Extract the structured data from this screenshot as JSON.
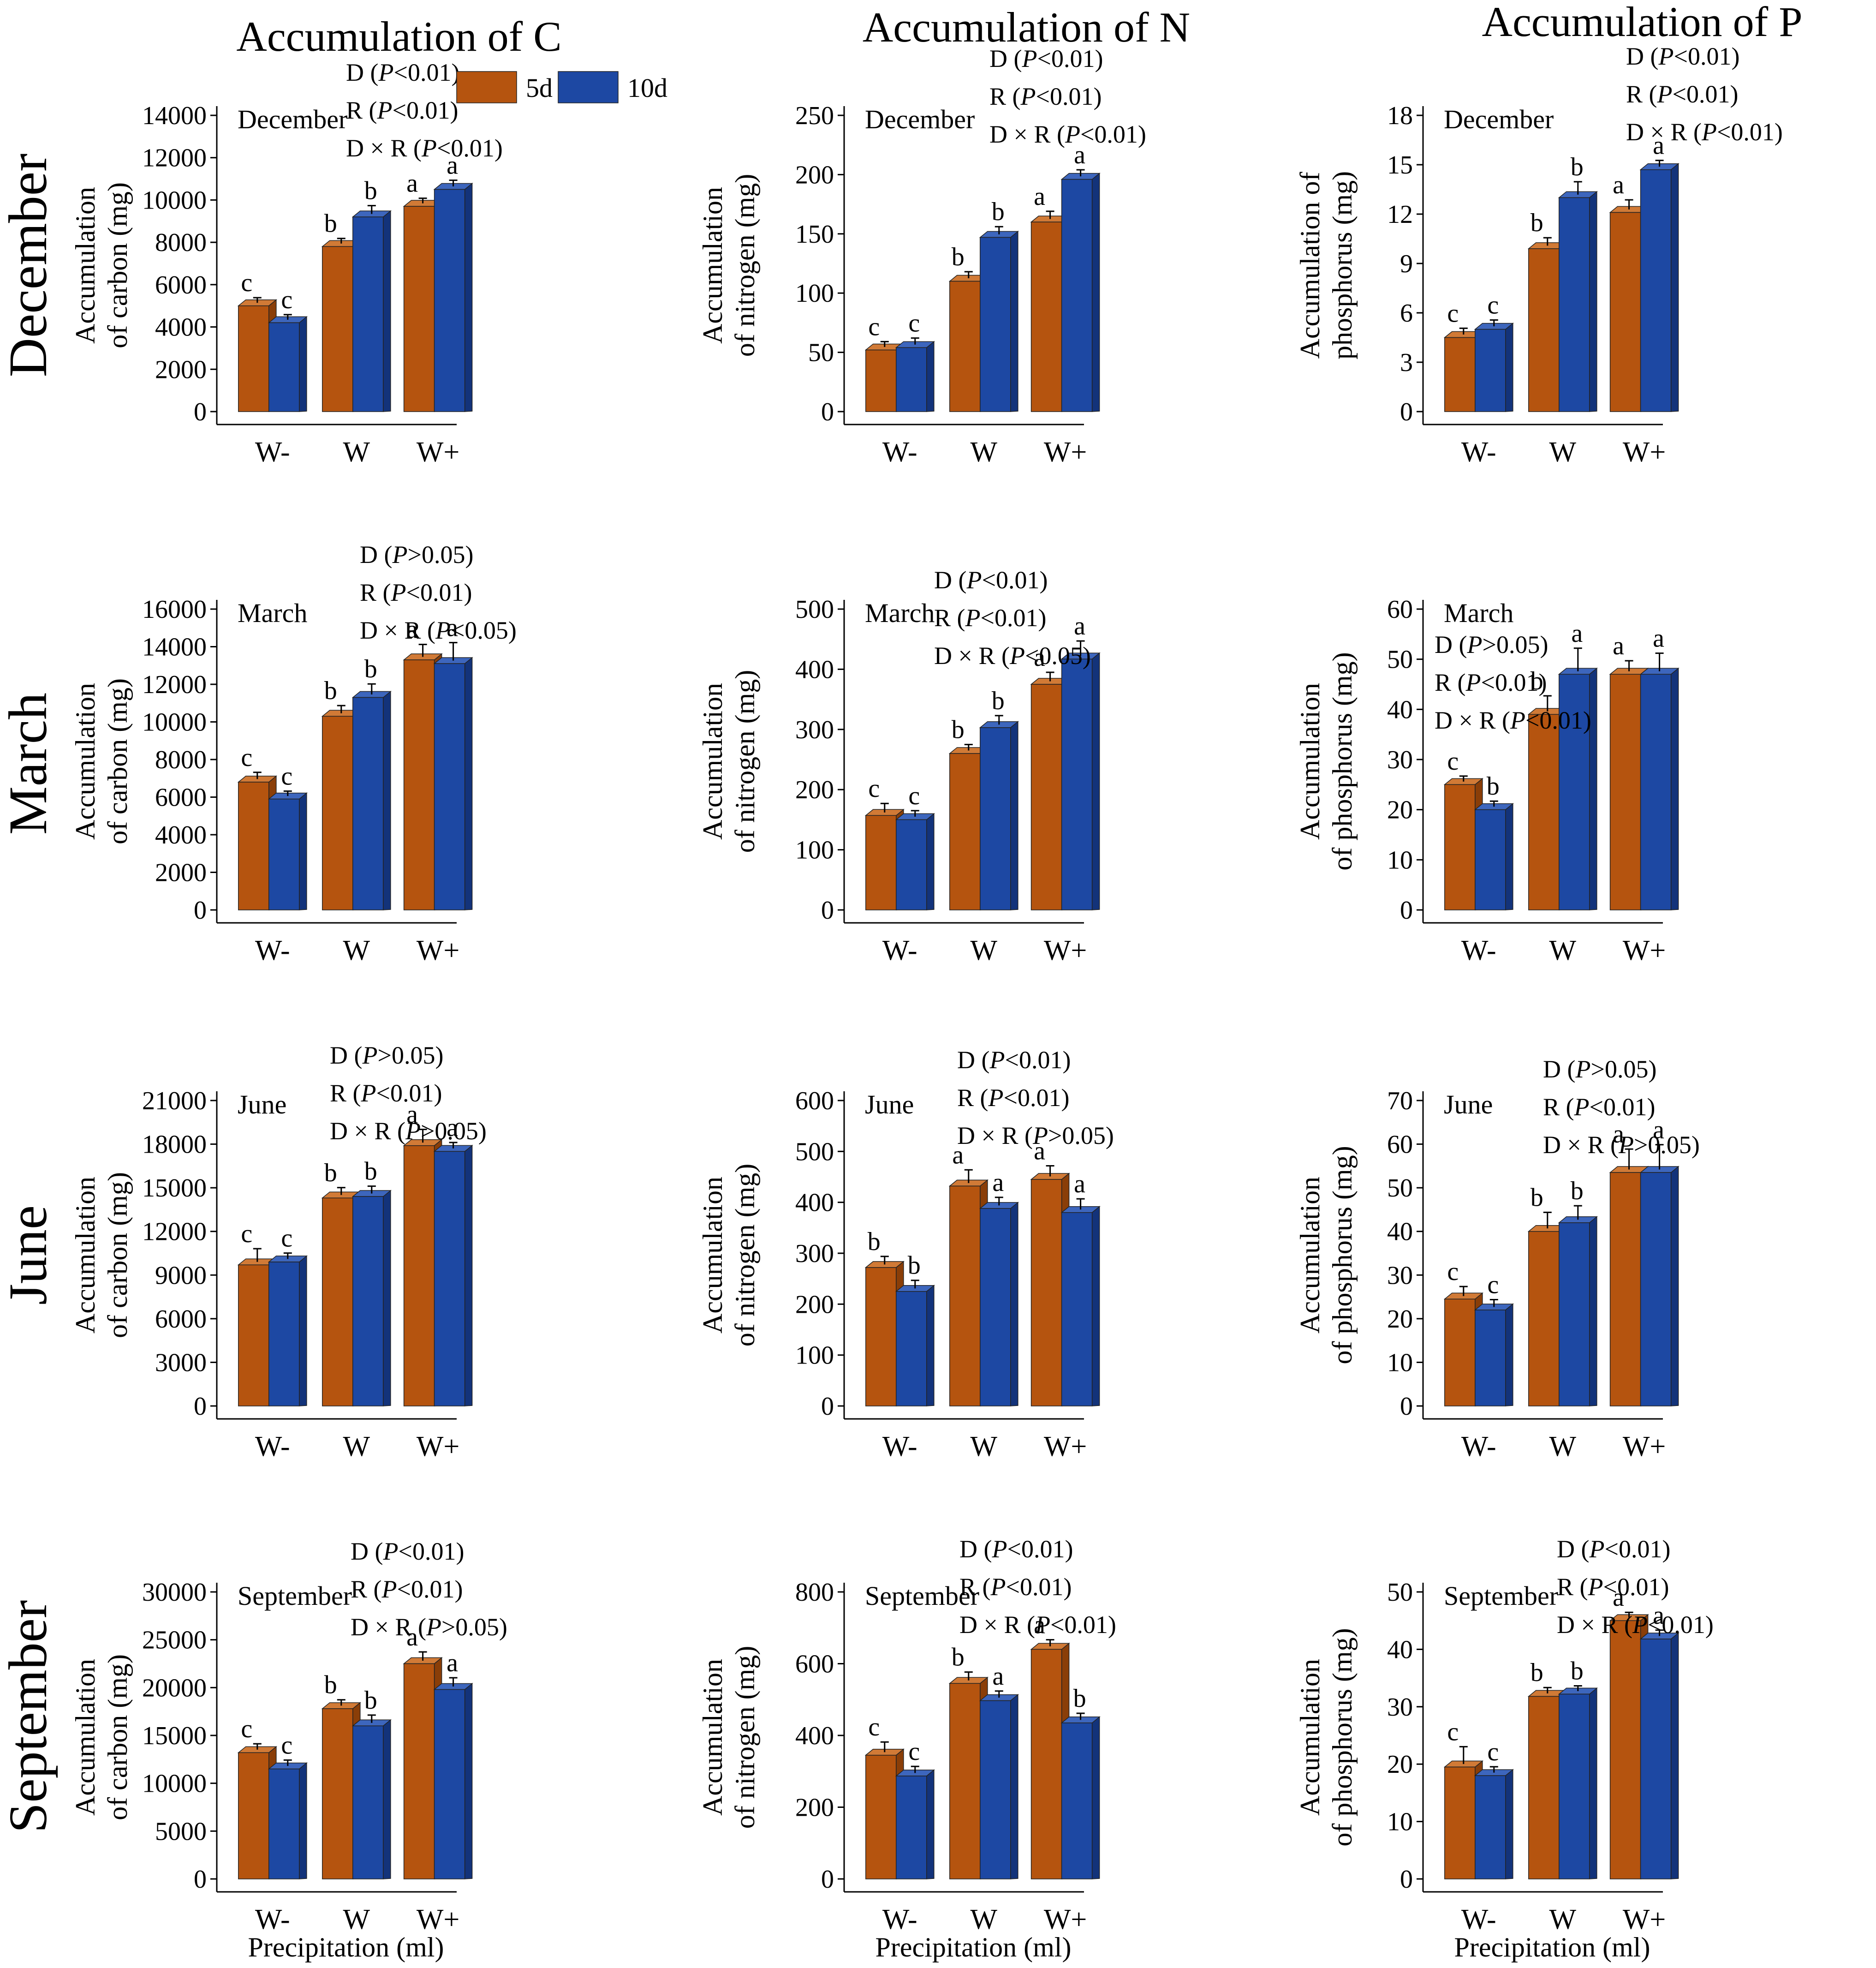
{
  "column_titles": [
    "Accumulation of C",
    "Accumulation of N",
    "Accumulation of P"
  ],
  "row_labels": [
    "December",
    "March",
    "June",
    "September"
  ],
  "colors": {
    "d5": "#B5540F",
    "d10": "#1D48A3",
    "d5_side": "#8A3E08",
    "d10_side": "#13337A",
    "d5_top": "#D17A36",
    "d10_top": "#3D66BD"
  },
  "legend": {
    "d5": "5d",
    "d10": "10d"
  },
  "x_axis_title": "Precipitation (ml)",
  "chart_data": [
    {
      "type": "bar",
      "row": 0,
      "col": 0,
      "title": "",
      "panel_label": "December",
      "ylabel_lines": [
        "Accumulation",
        "of carbon (mg)"
      ],
      "categories": [
        "W-",
        "W",
        "W+"
      ],
      "yticks": [
        "0",
        "2000",
        "4000",
        "6000",
        "8000",
        "10000",
        "12000",
        "14000"
      ],
      "ylim": [
        0,
        14000
      ],
      "series": [
        {
          "name": "5d",
          "values": [
            5000,
            7800,
            9700
          ]
        },
        {
          "name": "10d",
          "values": [
            4200,
            9200,
            10500
          ]
        }
      ],
      "errors": [
        [
          100,
          100,
          100
        ],
        [
          100,
          250,
          150
        ]
      ],
      "letters": [
        [
          "c",
          "b",
          "a"
        ],
        [
          "c",
          "b",
          "a"
        ]
      ],
      "stats": [
        "D (P<0.01)",
        "R (P<0.01)",
        "D × R (P<0.01)"
      ],
      "legend": true,
      "xlabel": ""
    },
    {
      "type": "bar",
      "row": 0,
      "col": 1,
      "title": "",
      "panel_label": "December",
      "ylabel_lines": [
        "Accumulation",
        "of nitrogen (mg)"
      ],
      "categories": [
        "W-",
        "W",
        "W+"
      ],
      "yticks": [
        "0",
        "50",
        "100",
        "150",
        "200",
        "250"
      ],
      "ylim": [
        0,
        250
      ],
      "series": [
        {
          "name": "5d",
          "values": [
            52,
            110,
            160
          ]
        },
        {
          "name": "10d",
          "values": [
            54,
            147,
            196
          ]
        }
      ],
      "errors": [
        [
          2,
          3,
          4
        ],
        [
          3,
          4,
          3
        ]
      ],
      "letters": [
        [
          "c",
          "b",
          "a"
        ],
        [
          "c",
          "b",
          "a"
        ]
      ],
      "stats": [
        "D (P<0.01)",
        "R (P<0.01)",
        "D × R (P<0.01)"
      ],
      "legend": false,
      "xlabel": ""
    },
    {
      "type": "bar",
      "row": 0,
      "col": 2,
      "title": "",
      "panel_label": "December",
      "ylabel_lines": [
        "Accumulation of",
        "phosphorus (mg)"
      ],
      "categories": [
        "W-",
        "W",
        "W+"
      ],
      "yticks": [
        "0",
        "3",
        "6",
        "9",
        "12",
        "15",
        "18"
      ],
      "ylim": [
        0,
        18
      ],
      "series": [
        {
          "name": "5d",
          "values": [
            4.5,
            9.9,
            12.1
          ]
        },
        {
          "name": "10d",
          "values": [
            5.0,
            13.0,
            14.7
          ]
        }
      ],
      "errors": [
        [
          0.2,
          0.3,
          0.4
        ],
        [
          0.2,
          0.6,
          0.2
        ]
      ],
      "letters": [
        [
          "c",
          "b",
          "a"
        ],
        [
          "c",
          "b",
          "a"
        ]
      ],
      "stats": [
        "D (P<0.01)",
        "R (P<0.01)",
        "D × R (P<0.01)"
      ],
      "legend": false,
      "xlabel": ""
    },
    {
      "type": "bar",
      "row": 1,
      "col": 0,
      "title": "",
      "panel_label": "March",
      "ylabel_lines": [
        "Accumulation",
        "of carbon (mg)"
      ],
      "categories": [
        "W-",
        "W",
        "W+"
      ],
      "yticks": [
        "0",
        "2000",
        "4000",
        "6000",
        "8000",
        "10000",
        "12000",
        "14000",
        "16000"
      ],
      "ylim": [
        0,
        16000
      ],
      "series": [
        {
          "name": "5d",
          "values": [
            6800,
            10300,
            13300
          ]
        },
        {
          "name": "10d",
          "values": [
            5900,
            11300,
            13100
          ]
        }
      ],
      "errors": [
        [
          200,
          250,
          500
        ],
        [
          100,
          400,
          800
        ]
      ],
      "letters": [
        [
          "c",
          "b",
          "a"
        ],
        [
          "c",
          "b",
          "a"
        ]
      ],
      "stats": [
        "D (P>0.05)",
        "R (P<0.01)",
        "D × R (P<0.05)"
      ],
      "legend": false,
      "xlabel": ""
    },
    {
      "type": "bar",
      "row": 1,
      "col": 1,
      "title": "",
      "panel_label": "March",
      "ylabel_lines": [
        "Accumulation",
        "of nitrogen (mg)"
      ],
      "categories": [
        "W-",
        "W",
        "W+"
      ],
      "yticks": [
        "0",
        "100",
        "200",
        "300",
        "400",
        "500"
      ],
      "ylim": [
        0,
        500
      ],
      "series": [
        {
          "name": "5d",
          "values": [
            157,
            260,
            375
          ]
        },
        {
          "name": "10d",
          "values": [
            150,
            303,
            417
          ]
        }
      ],
      "errors": [
        [
          10,
          5,
          10
        ],
        [
          5,
          10,
          20
        ]
      ],
      "letters": [
        [
          "c",
          "b",
          "a"
        ],
        [
          "c",
          "b",
          "a"
        ]
      ],
      "stats": [
        "D (P<0.01)",
        "R (P<0.01)",
        "D × R (P<0.05)"
      ],
      "legend": false,
      "xlabel": ""
    },
    {
      "type": "bar",
      "row": 1,
      "col": 2,
      "title": "",
      "panel_label": "March",
      "ylabel_lines": [
        "Accumulation",
        "of phosphorus (mg)"
      ],
      "categories": [
        "W-",
        "W",
        "W+"
      ],
      "yticks": [
        "0",
        "10",
        "20",
        "30",
        "40",
        "50",
        "60"
      ],
      "ylim": [
        0,
        60
      ],
      "series": [
        {
          "name": "5d",
          "values": [
            25,
            39,
            47
          ]
        },
        {
          "name": "10d",
          "values": [
            20,
            47,
            47
          ]
        }
      ],
      "errors": [
        [
          0.5,
          2.5,
          1.5
        ],
        [
          0.5,
          4,
          3
        ]
      ],
      "letters": [
        [
          "c",
          "b",
          "a"
        ],
        [
          "b",
          "a",
          "a"
        ]
      ],
      "stats": [
        "D (P>0.05)",
        "R (P<0.01)",
        "D × R (P<0.01)"
      ],
      "legend": false,
      "xlabel": ""
    },
    {
      "type": "bar",
      "row": 2,
      "col": 0,
      "title": "",
      "panel_label": "June",
      "ylabel_lines": [
        "Accumulation",
        "of carbon (mg)"
      ],
      "categories": [
        "W-",
        "W",
        "W+"
      ],
      "yticks": [
        "0",
        "3000",
        "6000",
        "9000",
        "12000",
        "15000",
        "18000",
        "21000"
      ],
      "ylim": [
        0,
        21000
      ],
      "series": [
        {
          "name": "5d",
          "values": [
            9700,
            14300,
            17900
          ]
        },
        {
          "name": "10d",
          "values": [
            9900,
            14400,
            17500
          ]
        }
      ],
      "errors": [
        [
          700,
          300,
          700
        ],
        [
          200,
          300,
          200
        ]
      ],
      "letters": [
        [
          "c",
          "b",
          "a"
        ],
        [
          "c",
          "b",
          "a"
        ]
      ],
      "stats": [
        "D (P>0.05)",
        "R (P<0.01)",
        "D × R (P>0.05)"
      ],
      "legend": false,
      "xlabel": ""
    },
    {
      "type": "bar",
      "row": 2,
      "col": 1,
      "title": "",
      "panel_label": "June",
      "ylabel_lines": [
        "Accumulation",
        "of nitrogen (mg)"
      ],
      "categories": [
        "W-",
        "W",
        "W+"
      ],
      "yticks": [
        "0",
        "100",
        "200",
        "300",
        "400",
        "500",
        "600"
      ],
      "ylim": [
        0,
        600
      ],
      "series": [
        {
          "name": "5d",
          "values": [
            272,
            432,
            445
          ]
        },
        {
          "name": "10d",
          "values": [
            225,
            388,
            380
          ]
        }
      ],
      "errors": [
        [
          10,
          20,
          15
        ],
        [
          10,
          10,
          15
        ]
      ],
      "letters": [
        [
          "b",
          "a",
          "a"
        ],
        [
          "b",
          "a",
          "a"
        ]
      ],
      "stats": [
        "D (P<0.01)",
        "R (P<0.01)",
        "D × R (P>0.05)"
      ],
      "legend": false,
      "xlabel": ""
    },
    {
      "type": "bar",
      "row": 2,
      "col": 2,
      "title": "",
      "panel_label": "June",
      "ylabel_lines": [
        "Accumulation",
        "of phosphorus (mg)"
      ],
      "categories": [
        "W-",
        "W",
        "W+"
      ],
      "yticks": [
        "0",
        "10",
        "20",
        "30",
        "40",
        "50",
        "60",
        "70"
      ],
      "ylim": [
        0,
        70
      ],
      "series": [
        {
          "name": "5d",
          "values": [
            24.5,
            40,
            53.5
          ]
        },
        {
          "name": "10d",
          "values": [
            22,
            42,
            53.5
          ]
        }
      ],
      "errors": [
        [
          1.5,
          3,
          4
        ],
        [
          1,
          2.5,
          5
        ]
      ],
      "letters": [
        [
          "c",
          "b",
          "a"
        ],
        [
          "c",
          "b",
          "a"
        ]
      ],
      "stats": [
        "D (P>0.05)",
        "R (P<0.01)",
        "D × R (P>0.05)"
      ],
      "legend": false,
      "xlabel": ""
    },
    {
      "type": "bar",
      "row": 3,
      "col": 0,
      "title": "",
      "panel_label": "September",
      "ylabel_lines": [
        "Accumulation",
        "of carbon (mg)"
      ],
      "categories": [
        "W-",
        "W",
        "W+"
      ],
      "yticks": [
        "0",
        "5000",
        "10000",
        "15000",
        "20000",
        "25000",
        "30000"
      ],
      "ylim": [
        0,
        30000
      ],
      "series": [
        {
          "name": "5d",
          "values": [
            13200,
            17800,
            22500
          ]
        },
        {
          "name": "10d",
          "values": [
            11500,
            16000,
            19800
          ]
        }
      ],
      "errors": [
        [
          300,
          300,
          600
        ],
        [
          300,
          500,
          600
        ]
      ],
      "letters": [
        [
          "c",
          "b",
          "a"
        ],
        [
          "c",
          "b",
          "a"
        ]
      ],
      "stats": [
        "D (P<0.01)",
        "R (P<0.01)",
        "D × R (P>0.05)"
      ],
      "legend": false,
      "xlabel": "Precipitation (ml)"
    },
    {
      "type": "bar",
      "row": 3,
      "col": 1,
      "title": "",
      "panel_label": "September",
      "ylabel_lines": [
        "Accumulation",
        "of nitrogen (mg)"
      ],
      "categories": [
        "W-",
        "W",
        "W+"
      ],
      "yticks": [
        "0",
        "200",
        "400",
        "600",
        "800"
      ],
      "ylim": [
        0,
        800
      ],
      "series": [
        {
          "name": "5d",
          "values": [
            345,
            545,
            640
          ]
        },
        {
          "name": "10d",
          "values": [
            287,
            497,
            435
          ]
        }
      ],
      "errors": [
        [
          20,
          15,
          10
        ],
        [
          10,
          10,
          10
        ]
      ],
      "letters": [
        [
          "c",
          "b",
          "a"
        ],
        [
          "c",
          "a",
          "b"
        ]
      ],
      "stats": [
        "D (P<0.01)",
        "R (P<0.01)",
        "D × R (P<0.01)"
      ],
      "legend": false,
      "xlabel": "Precipitation (ml)"
    },
    {
      "type": "bar",
      "row": 3,
      "col": 2,
      "title": "",
      "panel_label": "September",
      "ylabel_lines": [
        "Accumulation",
        "of phosphorus (mg)"
      ],
      "categories": [
        "W-",
        "W",
        "W+"
      ],
      "yticks": [
        "0",
        "10",
        "20",
        "30",
        "40",
        "50"
      ],
      "ylim": [
        0,
        50
      ],
      "series": [
        {
          "name": "5d",
          "values": [
            19.5,
            31.8,
            45
          ]
        },
        {
          "name": "10d",
          "values": [
            18,
            32.2,
            41.8
          ]
        }
      ],
      "errors": [
        [
          2.5,
          0.5,
          0.4
        ],
        [
          0.5,
          0.4,
          0.5
        ]
      ],
      "letters": [
        [
          "c",
          "b",
          "a"
        ],
        [
          "c",
          "b",
          "a"
        ]
      ],
      "stats": [
        "D (P<0.01)",
        "R (P<0.01)",
        "D × R (P<0.01)"
      ],
      "legend": false,
      "xlabel": "Precipitation (ml)"
    }
  ]
}
